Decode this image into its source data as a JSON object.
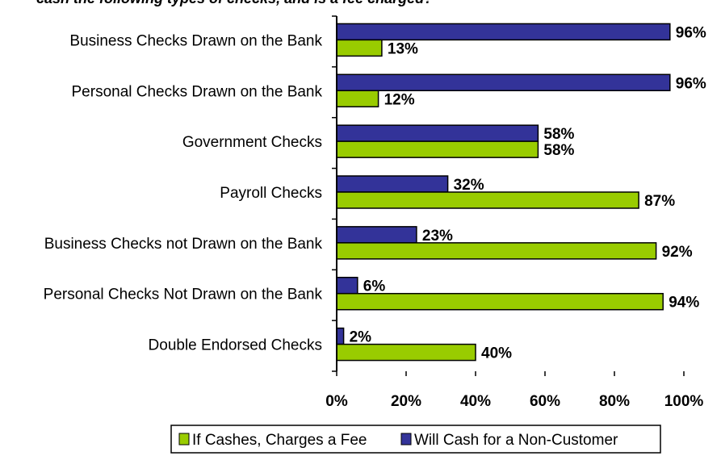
{
  "chart_data": {
    "type": "bar",
    "orientation": "horizontal",
    "title": "cash the following types of checks, and is a fee charged?",
    "categories": [
      "Business Checks Drawn on the Bank",
      "Personal Checks Drawn on the Bank",
      "Government Checks",
      "Payroll Checks",
      "Business Checks not Drawn on the Bank",
      "Personal Checks Not Drawn on the Bank",
      "Double Endorsed Checks"
    ],
    "series": [
      {
        "name": "Will Cash for a Non-Customer",
        "color": "#333399",
        "values": [
          96,
          96,
          58,
          32,
          23,
          6,
          2
        ],
        "labels": [
          "96%",
          "96%",
          "58%",
          "32%",
          "23%",
          "6%",
          "2%"
        ]
      },
      {
        "name": "If Cashes, Charges a Fee",
        "color": "#99CC00",
        "values": [
          13,
          12,
          58,
          87,
          92,
          94,
          40
        ],
        "labels": [
          "13%",
          "12%",
          "58%",
          "87%",
          "92%",
          "94%",
          "40%"
        ]
      }
    ],
    "xlim": [
      0,
      100
    ],
    "xticks": [
      "0%",
      "20%",
      "40%",
      "60%",
      "80%",
      "100%"
    ],
    "grid": false,
    "legend": {
      "position": "bottom",
      "entries": [
        {
          "label": "If Cashes, Charges a Fee",
          "color": "#99CC00"
        },
        {
          "label": "Will Cash for a Non-Customer",
          "color": "#333399"
        }
      ]
    }
  }
}
